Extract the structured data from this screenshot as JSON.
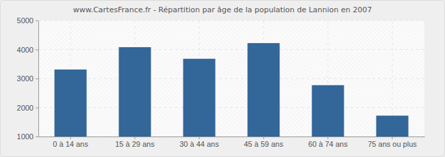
{
  "chart_data": {
    "type": "bar",
    "title": "www.CartesFrance.fr - Répartition par âge de la population de Lannion en 2007",
    "categories": [
      "0 à 14 ans",
      "15 à 29 ans",
      "30 à 44 ans",
      "45 à 59 ans",
      "60 à 74 ans",
      "75 ans ou plus"
    ],
    "values": [
      3310,
      4080,
      3680,
      4220,
      2770,
      1720
    ],
    "color": "#336699",
    "ylim": [
      1000,
      5000
    ],
    "yticks": [
      1000,
      2000,
      3000,
      4000,
      5000
    ],
    "grid": true
  }
}
